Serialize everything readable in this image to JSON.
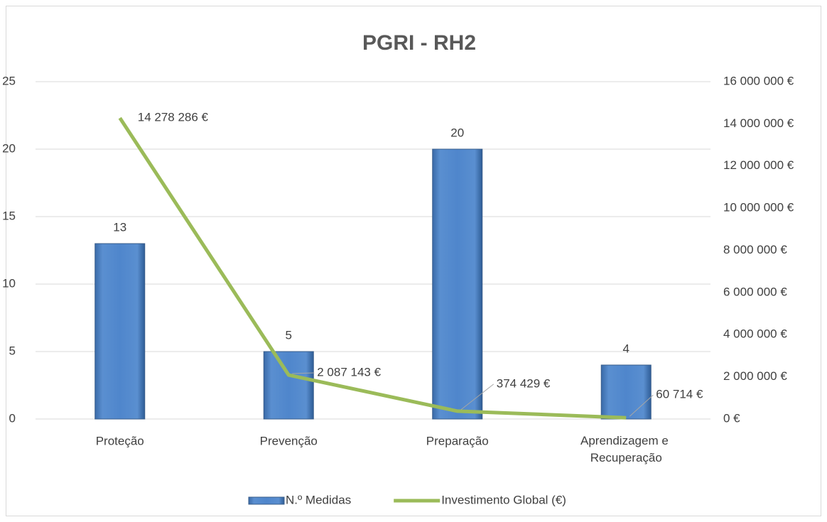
{
  "chart_data": {
    "type": "combo",
    "title": "PGRI - RH2",
    "categories": [
      "Proteção",
      "Prevenção",
      "Preparação",
      "Aprendizagem e Recuperação"
    ],
    "series": [
      {
        "name": "N.º Medidas",
        "type": "bar",
        "color": "#4f81bd",
        "values": [
          13,
          5,
          20,
          4
        ]
      },
      {
        "name": "Investimento Global (€)",
        "type": "line",
        "axis": "y2",
        "color": "#9bbb59",
        "values": [
          14278286,
          2087143,
          374429,
          60714
        ],
        "value_labels": [
          "14 278 286 €",
          "2 087 143 €",
          "374 429 €",
          "60 714 €"
        ]
      }
    ],
    "ylim": [
      0,
      25
    ],
    "yticks": [
      0,
      5,
      10,
      15,
      20,
      25
    ],
    "y2lim": [
      0,
      16000000
    ],
    "y2ticks": [
      {
        "value": 0,
        "label": "0 €"
      },
      {
        "value": 2000000,
        "label": "2 000 000 €"
      },
      {
        "value": 4000000,
        "label": "4 000 000 €"
      },
      {
        "value": 6000000,
        "label": "6 000 000 €"
      },
      {
        "value": 8000000,
        "label": "8 000 000 €"
      },
      {
        "value": 10000000,
        "label": "10 000 000 €"
      },
      {
        "value": 12000000,
        "label": "12 000 000 €"
      },
      {
        "value": 14000000,
        "label": "14 000 000 €"
      },
      {
        "value": 16000000,
        "label": "16 000 000 €"
      }
    ],
    "grid": true,
    "legend": "bottom"
  }
}
